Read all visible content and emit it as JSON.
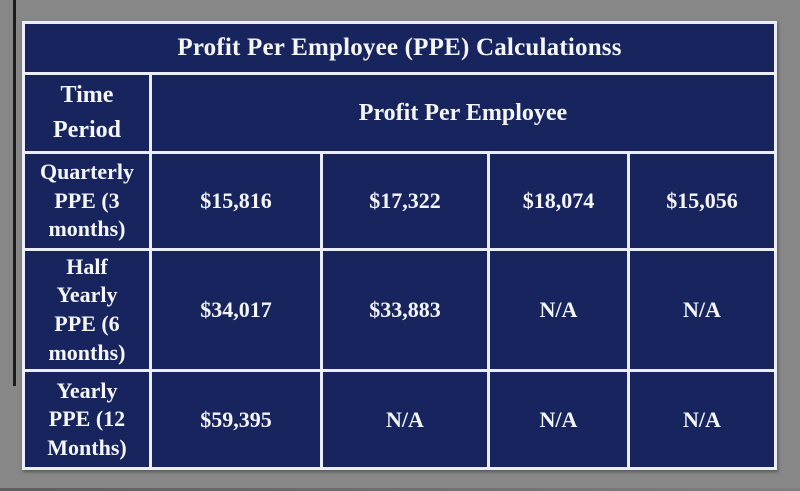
{
  "window": {
    "background_color": "#878787"
  },
  "table": {
    "title": "Profit Per Employee (PPE) Calculationss",
    "header": {
      "time_period_label_lines": [
        "Time",
        "Period"
      ],
      "group_label": "Profit Per Employee"
    },
    "rows": [
      {
        "label_lines": [
          "Quarterly",
          "PPE (3",
          "months)"
        ],
        "values": [
          "$15,816",
          "$17,322",
          "$18,074",
          "$15,056"
        ]
      },
      {
        "label_lines": [
          "Half",
          "Yearly",
          "PPE (6",
          "months)"
        ],
        "values": [
          "$34,017",
          "$33,883",
          "N/A",
          "N/A"
        ]
      },
      {
        "label_lines": [
          "Yearly",
          "PPE (12",
          "Months)"
        ],
        "values": [
          "$59,395",
          "N/A",
          "N/A",
          "N/A"
        ]
      }
    ],
    "colors": {
      "cell_background": "#17245e",
      "border": "#eceef7",
      "text": "#f5f6fa",
      "canvas_gray": "#878787",
      "window_edge_line": "#1c1c1c"
    }
  },
  "chart_data": {
    "type": "table",
    "title": "Profit Per Employee (PPE) Calculationss",
    "column_group_header": "Profit Per Employee",
    "row_header_column": "Time Period",
    "row_headers": [
      "Quarterly PPE (3 months)",
      "Half Yearly PPE (6 months)",
      "Yearly PPE (12 Months)"
    ],
    "values": [
      [
        "$15,816",
        "$17,322",
        "$18,074",
        "$15,056"
      ],
      [
        "$34,017",
        "$33,883",
        "N/A",
        "N/A"
      ],
      [
        "$59,395",
        "N/A",
        "N/A",
        "N/A"
      ]
    ]
  }
}
